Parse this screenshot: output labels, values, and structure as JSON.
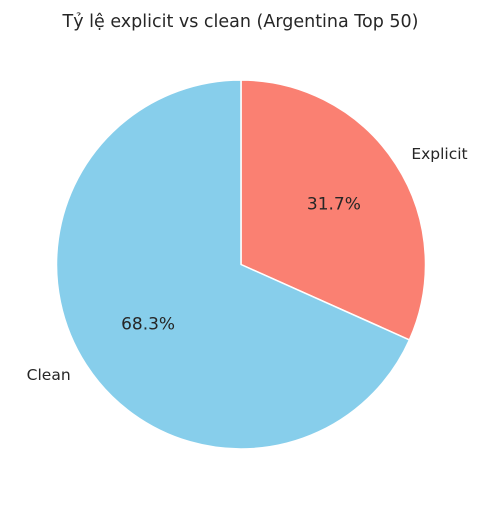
{
  "chart_data": {
    "type": "pie",
    "title": "Tỷ lệ explicit vs clean (Argentina Top 50)",
    "slices": [
      {
        "label": "Explicit",
        "value": 31.7,
        "display": "31.7%",
        "color": "#fa8072"
      },
      {
        "label": "Clean",
        "value": 68.3,
        "display": "68.3%",
        "color": "#87ceeb"
      }
    ],
    "start_angle_deg": 90,
    "direction": "clockwise",
    "legend": "none"
  }
}
